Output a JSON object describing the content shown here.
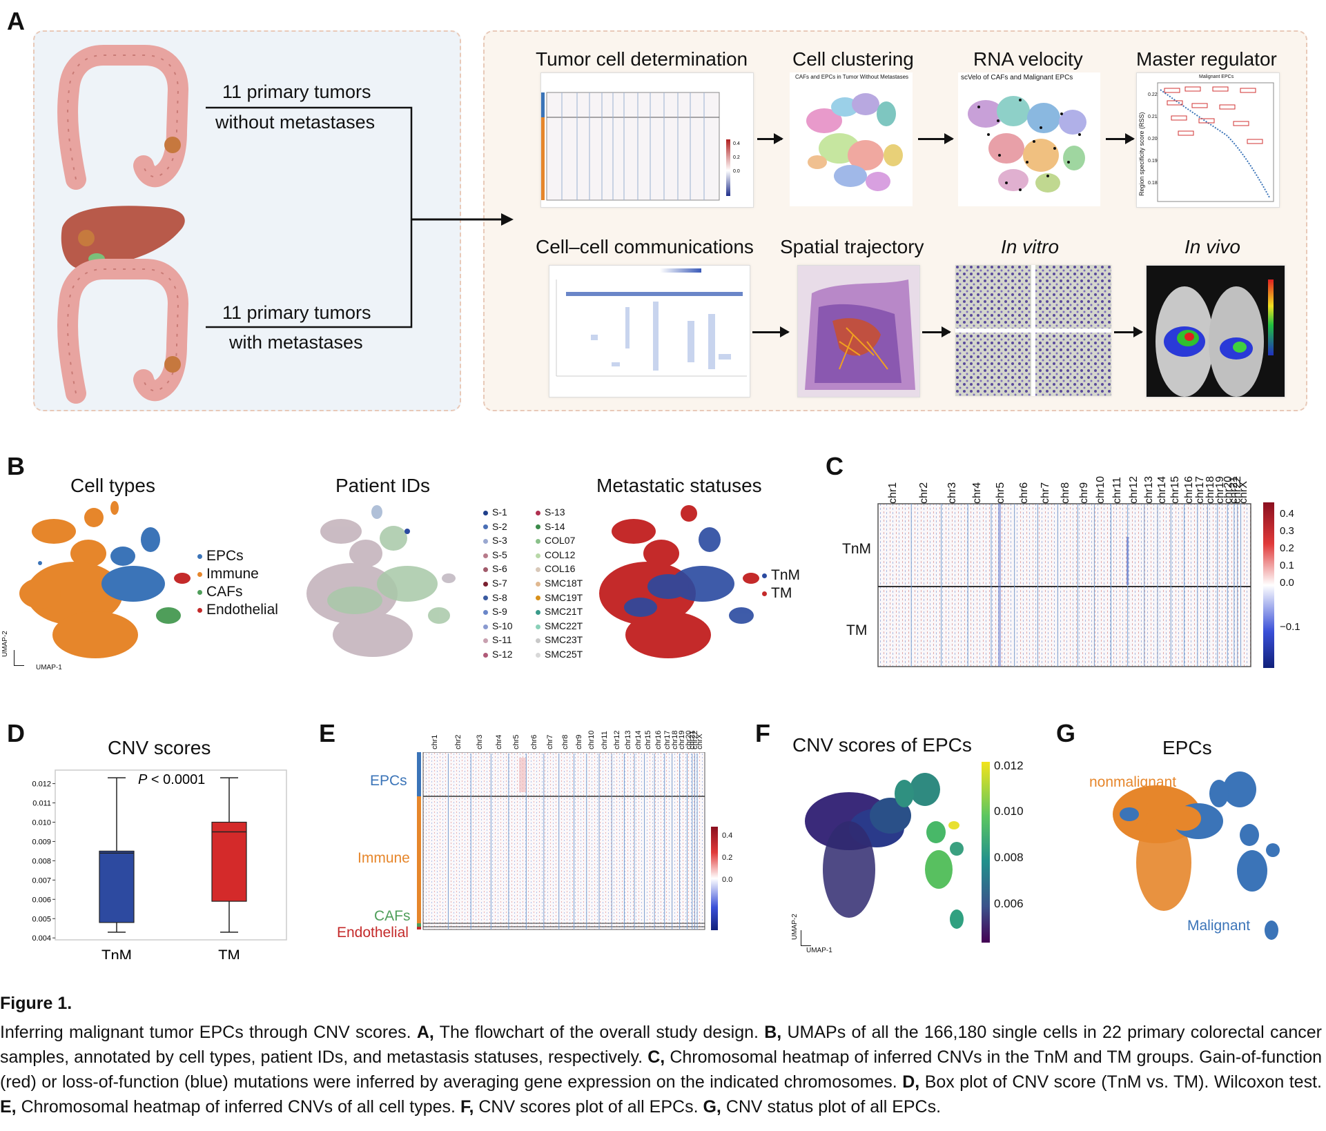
{
  "panels": {
    "A": "A",
    "B": "B",
    "C": "C",
    "D": "D",
    "E": "E",
    "F": "F",
    "G": "G"
  },
  "panel_a": {
    "group1_line1": "11 primary tumors",
    "group1_line2": "without metastases",
    "group2_line1": "11 primary tumors",
    "group2_line2": "with metastases",
    "steps": [
      {
        "title": "Tumor cell determination",
        "subtitle": ""
      },
      {
        "title": "Cell clustering",
        "subtitle": "CAFs and EPCs in Tumor Without Metastases"
      },
      {
        "title": "RNA velocity",
        "subtitle": "scVelo of CAFs and Malignant EPCs"
      },
      {
        "title": "Master regulator",
        "subtitle": "Malignant EPCs"
      },
      {
        "title": "Cell–cell communications",
        "subtitle": ""
      },
      {
        "title": "Spatial trajectory",
        "subtitle": ""
      },
      {
        "title": "In vitro",
        "subtitle": ""
      },
      {
        "title": "In vivo",
        "subtitle": ""
      }
    ],
    "master_regulator_ylabel": "Region specificity score (RSS)",
    "master_regulator_yticks": [
      "0.22",
      "0.21",
      "0.20",
      "0.19",
      "0.18"
    ],
    "mini_heatmap_ticks": [
      "0.4",
      "0.2",
      "0.0"
    ]
  },
  "panel_b": {
    "titles": [
      "Cell types",
      "Patient IDs",
      "Metastatic statuses"
    ],
    "cell_types": [
      {
        "label": "EPCs",
        "color": "#3b74b8"
      },
      {
        "label": "Immune",
        "color": "#e6862b"
      },
      {
        "label": "CAFs",
        "color": "#4f9e5a"
      },
      {
        "label": "Endothelial",
        "color": "#c42a2a"
      }
    ],
    "patients_col1": [
      {
        "label": "S-1",
        "color": "#1f3f8a"
      },
      {
        "label": "S-2",
        "color": "#4a6fb5"
      },
      {
        "label": "S-3",
        "color": "#9aa8d0"
      },
      {
        "label": "S-5",
        "color": "#b77a8a"
      },
      {
        "label": "S-6",
        "color": "#a05a6a"
      },
      {
        "label": "S-7",
        "color": "#7a1f2f"
      },
      {
        "label": "S-8",
        "color": "#3a5aa0"
      },
      {
        "label": "S-9",
        "color": "#6a86c8"
      },
      {
        "label": "S-10",
        "color": "#8a9ad0"
      },
      {
        "label": "S-11",
        "color": "#c8a0b0"
      },
      {
        "label": "S-12",
        "color": "#b05a78"
      }
    ],
    "patients_col2": [
      {
        "label": "S-13",
        "color": "#b03050"
      },
      {
        "label": "S-14",
        "color": "#3a8a4a"
      },
      {
        "label": "COL07",
        "color": "#8ac08a"
      },
      {
        "label": "COL12",
        "color": "#b8d8a8"
      },
      {
        "label": "COL16",
        "color": "#d8c8b8"
      },
      {
        "label": "SMC18T",
        "color": "#e0b890"
      },
      {
        "label": "SMC19T",
        "color": "#d8901a"
      },
      {
        "label": "SMC21T",
        "color": "#3a9a8a"
      },
      {
        "label": "SMC22T",
        "color": "#8ad0b8"
      },
      {
        "label": "SMC23T",
        "color": "#c8c8c8"
      },
      {
        "label": "SMC25T",
        "color": "#d8d8d8"
      }
    ],
    "statuses": [
      {
        "label": "TnM",
        "color": "#2a4aa0"
      },
      {
        "label": "TM",
        "color": "#c42a2a"
      }
    ],
    "axis_y": "UMAP-2",
    "axis_x": "UMAP-1"
  },
  "panel_c": {
    "chromosomes": [
      "chr1",
      "chr2",
      "chr3",
      "chr4",
      "chr5",
      "chr6",
      "chr7",
      "chr8",
      "chr9",
      "chr10",
      "chr11",
      "chr12",
      "chr13",
      "chr14",
      "chr15",
      "chr16",
      "chr17",
      "chr18",
      "chr19",
      "chr20",
      "chr21",
      "chr22",
      "chrX"
    ],
    "groups": [
      "TnM",
      "TM"
    ],
    "colorbar_ticks": [
      "0.4",
      "0.3",
      "0.2",
      "0.1",
      "0.0",
      "−0.1"
    ]
  },
  "chart_data": {
    "type": "box",
    "title": "CNV scores",
    "annotation_p": "P",
    "annotation_rest": " < 0.0001",
    "categories": [
      "TnM",
      "TM"
    ],
    "series": [
      {
        "name": "TnM",
        "min": 0.0043,
        "q1": 0.0048,
        "median": 0.0084,
        "q3": 0.0085,
        "max": 0.0123,
        "color": "#2d4aa0"
      },
      {
        "name": "TM",
        "min": 0.0043,
        "q1": 0.0059,
        "median": 0.0095,
        "q3": 0.01,
        "max": 0.0123,
        "color": "#d42a2a"
      }
    ],
    "yticks": [
      "0.004",
      "0.005",
      "0.006",
      "0.007",
      "0.008",
      "0.009",
      "0.010",
      "0.011",
      "0.012"
    ],
    "ylim": [
      0.0039,
      0.0127
    ]
  },
  "panel_e": {
    "groups": [
      "EPCs",
      "Immune",
      "CAFs",
      "Endothelial"
    ],
    "group_colors": [
      "#3b74b8",
      "#e6862b",
      "#4f9e5a",
      "#c42a2a"
    ],
    "colorbar_ticks": [
      "0.4",
      "0.2",
      "0.0"
    ]
  },
  "panel_f": {
    "title": "CNV scores of EPCs",
    "colorbar_ticks": [
      "0.012",
      "0.010",
      "0.008",
      "0.006"
    ],
    "axis_y": "UMAP-2",
    "axis_x": "UMAP-1"
  },
  "panel_g": {
    "title": "EPCs",
    "label_nonmalignant": "nonmalignant",
    "label_malignant": "Malignant"
  },
  "caption": {
    "figure_label": "Figure 1.",
    "intro": "Inferring malignant tumor EPCs through CNV scores. ",
    "parts": [
      {
        "key": "A,",
        "text": " The flowchart of the overall study design. "
      },
      {
        "key": "B,",
        "text": " UMAPs of all the 166,180 single cells in 22 primary colorectal cancer samples, annotated by cell types, patient IDs, and metastasis statuses, respectively. "
      },
      {
        "key": "C,",
        "text": " Chromosomal heatmap of inferred CNVs in the TnM and TM groups. Gain-of-function (red) or loss-of-function (blue) mutations were inferred by averaging gene expression on the indicated chromosomes. "
      },
      {
        "key": "D,",
        "text": " Box plot of CNV score (TnM vs. TM). Wilcoxon test. "
      },
      {
        "key": "E,",
        "text": " Chromosomal heatmap of inferred CNVs of all cell types. "
      },
      {
        "key": "F,",
        "text": " CNV scores plot of all EPCs. "
      },
      {
        "key": "G,",
        "text": " CNV status plot of all EPCs."
      }
    ]
  }
}
